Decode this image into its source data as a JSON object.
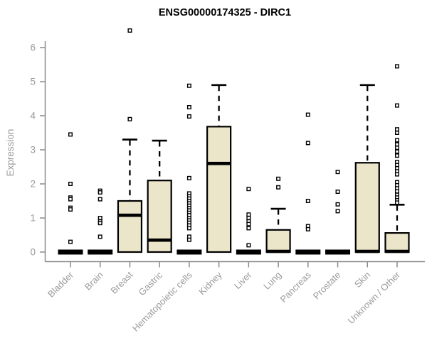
{
  "page": {
    "background": "#ffffff"
  },
  "chart_data": {
    "type": "boxplot",
    "title": "ENSG00000174325 - DIRC1",
    "xlabel": "",
    "ylabel": "Expression",
    "ylim": [
      0,
      6.6
    ],
    "yticks": [
      0,
      1,
      2,
      3,
      4,
      5,
      6
    ],
    "grid": false,
    "legend": null,
    "colors": {
      "box_fill": "#ebe5c9",
      "box_stroke": "#000000",
      "median": "#000000",
      "outlier_stroke": "#000000",
      "axis_line": "#8a8a8a",
      "axis_text": "#9b9b9b",
      "title_text": "#000000"
    },
    "categories": [
      "Bladder",
      "Brain",
      "Breast",
      "Gastric",
      "Hematopoietic cells",
      "Kidney",
      "Liver",
      "Lung",
      "Pancreas",
      "Prostate",
      "Skin",
      "Unknown / Other"
    ],
    "boxes": [
      {
        "category": "Bladder",
        "whisker_low": 0,
        "q1": 0,
        "median": 0,
        "q3": 0,
        "whisker_high": 0,
        "outliers": [
          3.45,
          2.0,
          1.6,
          1.55,
          1.3,
          1.25,
          0.3
        ]
      },
      {
        "category": "Brain",
        "whisker_low": 0,
        "q1": 0,
        "median": 0,
        "q3": 0,
        "whisker_high": 0,
        "outliers": [
          1.8,
          1.75,
          1.55,
          1.0,
          0.9,
          0.85,
          0.45
        ]
      },
      {
        "category": "Breast",
        "whisker_low": 0,
        "q1": 0,
        "median": 1.08,
        "q3": 1.5,
        "whisker_high": 3.3,
        "outliers": [
          6.5,
          3.9
        ]
      },
      {
        "category": "Gastric",
        "whisker_low": 0,
        "q1": 0,
        "median": 0.35,
        "q3": 2.1,
        "whisker_high": 3.27,
        "outliers": []
      },
      {
        "category": "Hematopoietic cells",
        "whisker_low": 0,
        "q1": 0,
        "median": 0,
        "q3": 0,
        "whisker_high": 0,
        "outliers": [
          4.88,
          4.25,
          3.98,
          2.17,
          1.72,
          1.64,
          1.57,
          1.5,
          1.43,
          1.36,
          1.29,
          1.22,
          1.15,
          1.08,
          1.0,
          0.93,
          0.86,
          0.78,
          0.7,
          0.45,
          0.36
        ]
      },
      {
        "category": "Kidney",
        "whisker_low": 0,
        "q1": 0,
        "median": 2.6,
        "q3": 3.68,
        "whisker_high": 4.9,
        "outliers": []
      },
      {
        "category": "Liver",
        "whisker_low": 0,
        "q1": 0,
        "median": 0,
        "q3": 0,
        "whisker_high": 0,
        "outliers": [
          1.85,
          1.1,
          1.0,
          0.9,
          0.82,
          0.7,
          0.2
        ]
      },
      {
        "category": "Lung",
        "whisker_low": 0,
        "q1": 0,
        "median": 0.02,
        "q3": 0.65,
        "whisker_high": 1.27,
        "outliers": [
          2.15,
          1.9
        ]
      },
      {
        "category": "Pancreas",
        "whisker_low": 0,
        "q1": 0,
        "median": 0,
        "q3": 0,
        "whisker_high": 0,
        "outliers": [
          4.03,
          3.2,
          1.5,
          0.76,
          0.67
        ]
      },
      {
        "category": "Prostate",
        "whisker_low": 0,
        "q1": 0,
        "median": 0,
        "q3": 0,
        "whisker_high": 0,
        "outliers": [
          2.35,
          1.77,
          1.4,
          1.2
        ]
      },
      {
        "category": "Skin",
        "whisker_low": 0,
        "q1": 0,
        "median": 0.02,
        "q3": 2.62,
        "whisker_high": 4.9,
        "outliers": []
      },
      {
        "category": "Unknown / Other",
        "whisker_low": 0,
        "q1": 0,
        "median": 0.02,
        "q3": 0.56,
        "whisker_high": 1.39,
        "outliers": [
          5.45,
          4.3,
          3.6,
          3.5,
          3.28,
          3.16,
          3.06,
          2.95,
          2.83,
          2.64,
          2.55,
          2.46,
          2.37,
          2.28,
          2.05,
          1.96,
          1.87,
          1.78,
          1.68,
          1.6,
          1.52,
          1.45
        ]
      }
    ]
  }
}
